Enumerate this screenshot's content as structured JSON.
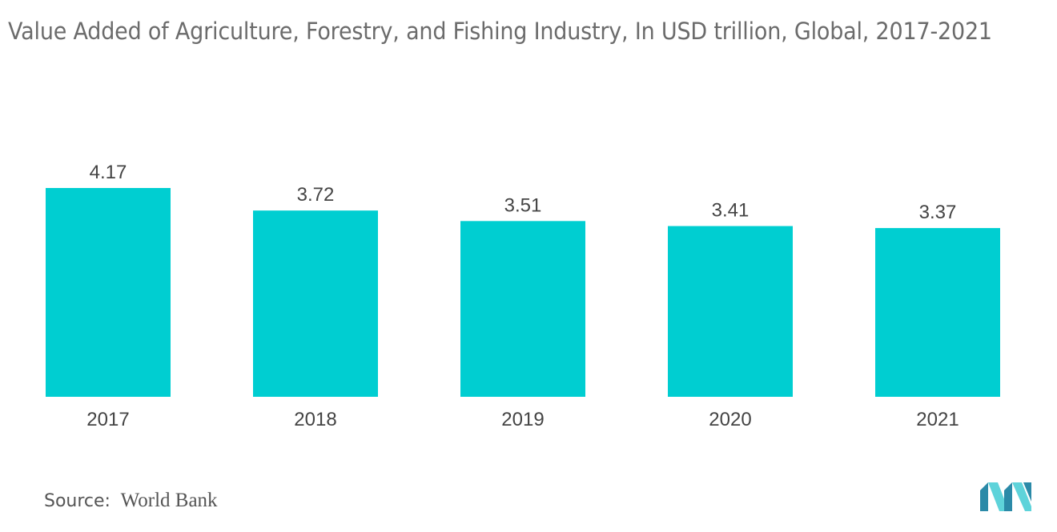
{
  "chart_data": {
    "type": "bar",
    "title": "Value Added of Agriculture, Forestry, and Fishing Industry, In USD trillion, Global, 2017-2021",
    "categories": [
      "2017",
      "2018",
      "2019",
      "2020",
      "2021"
    ],
    "values": [
      4.17,
      3.72,
      3.51,
      3.41,
      3.37
    ],
    "value_labels": [
      "4.17",
      "3.72",
      "3.51",
      "3.41",
      "3.37"
    ],
    "xlabel": "",
    "ylabel": "",
    "grid": false,
    "legend": "none",
    "bar_color": "#00ced1"
  },
  "source": {
    "label": "Source:",
    "value": "World Bank"
  },
  "colors": {
    "title": "#6b6b6b",
    "label": "#444444",
    "logo_dark": "#2b8aa8",
    "logo_light": "#5ed3da"
  }
}
